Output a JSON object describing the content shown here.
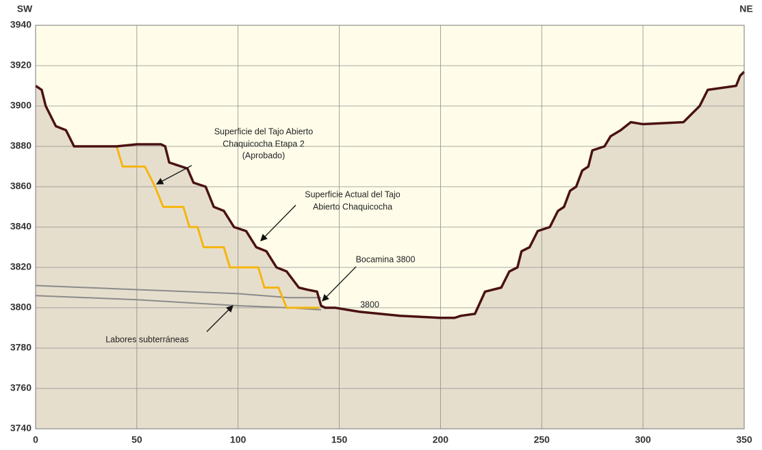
{
  "chart_data": {
    "type": "line",
    "corner_labels": [
      "SW",
      "NE"
    ],
    "xlim": [
      0,
      350
    ],
    "xticks": [
      0,
      50,
      100,
      150,
      200,
      250,
      300,
      350
    ],
    "ylim": [
      3740,
      3940
    ],
    "yticks": [
      3740,
      3760,
      3780,
      3800,
      3820,
      3840,
      3860,
      3880,
      3900,
      3920,
      3940
    ],
    "grid": true,
    "background": "#fffde9",
    "series": [
      {
        "color": "#4a1212",
        "width": 3.5,
        "fill": "#e6decd",
        "x": [
          0,
          3,
          5,
          10,
          15,
          19,
          30,
          40,
          50,
          62,
          64,
          66,
          72,
          75,
          78,
          84,
          88,
          93,
          98,
          104,
          109,
          114,
          119,
          124,
          130,
          134,
          139,
          141,
          143,
          148,
          160,
          180,
          200,
          207,
          210,
          217,
          222,
          230,
          234,
          238,
          240,
          244,
          248,
          254,
          258,
          261,
          264,
          267,
          270,
          273,
          275,
          281,
          284,
          289,
          294,
          300,
          320,
          324,
          328,
          332,
          346,
          348,
          350
        ],
        "values": [
          3910,
          3908,
          3900,
          3890,
          3888,
          3880,
          3880,
          3880,
          3881,
          3881,
          3880,
          3872,
          3870,
          3869,
          3862,
          3860,
          3850,
          3848,
          3840,
          3838,
          3830,
          3828,
          3820,
          3818,
          3810,
          3809,
          3808,
          3801,
          3800,
          3800,
          3798,
          3796,
          3795,
          3795,
          3796,
          3797,
          3808,
          3810,
          3818,
          3820,
          3828,
          3830,
          3838,
          3840,
          3848,
          3850,
          3858,
          3860,
          3868,
          3870,
          3878,
          3880,
          3885,
          3888,
          3892,
          3891,
          3892,
          3896,
          3900,
          3908,
          3910,
          3915,
          3917
        ]
      },
      {
        "color": "#f5b50f",
        "width": 3,
        "x": [
          40,
          43,
          54,
          59,
          63,
          73,
          76,
          80,
          83,
          93,
          96,
          110,
          113,
          120,
          124,
          140
        ],
        "values": [
          3880,
          3870,
          3870,
          3860,
          3850,
          3850,
          3840,
          3840,
          3830,
          3830,
          3820,
          3820,
          3810,
          3810,
          3800,
          3800
        ]
      },
      {
        "color": "#8a8a8a",
        "width": 2,
        "x": [
          0,
          50,
          100,
          125,
          141
        ],
        "values": [
          3811,
          3809,
          3807,
          3805,
          3805
        ]
      },
      {
        "color": "#8a8a8a",
        "width": 2,
        "x": [
          0,
          50,
          100,
          125,
          141
        ],
        "values": [
          3806,
          3804,
          3801,
          3800,
          3799
        ]
      }
    ],
    "annotations": [
      {
        "lines": [
          "Superficie del Tajo Abierto",
          "Chaquicocha Etapa 2",
          "(Aprobado)"
        ]
      },
      {
        "lines": [
          "Superficie Actual del Tajo",
          "Abierto Chaquicocha"
        ]
      },
      {
        "lines": [
          "Bocamina 3800"
        ]
      },
      {
        "lines": [
          "3800"
        ]
      },
      {
        "lines": [
          "Labores subterráneas"
        ]
      }
    ]
  }
}
